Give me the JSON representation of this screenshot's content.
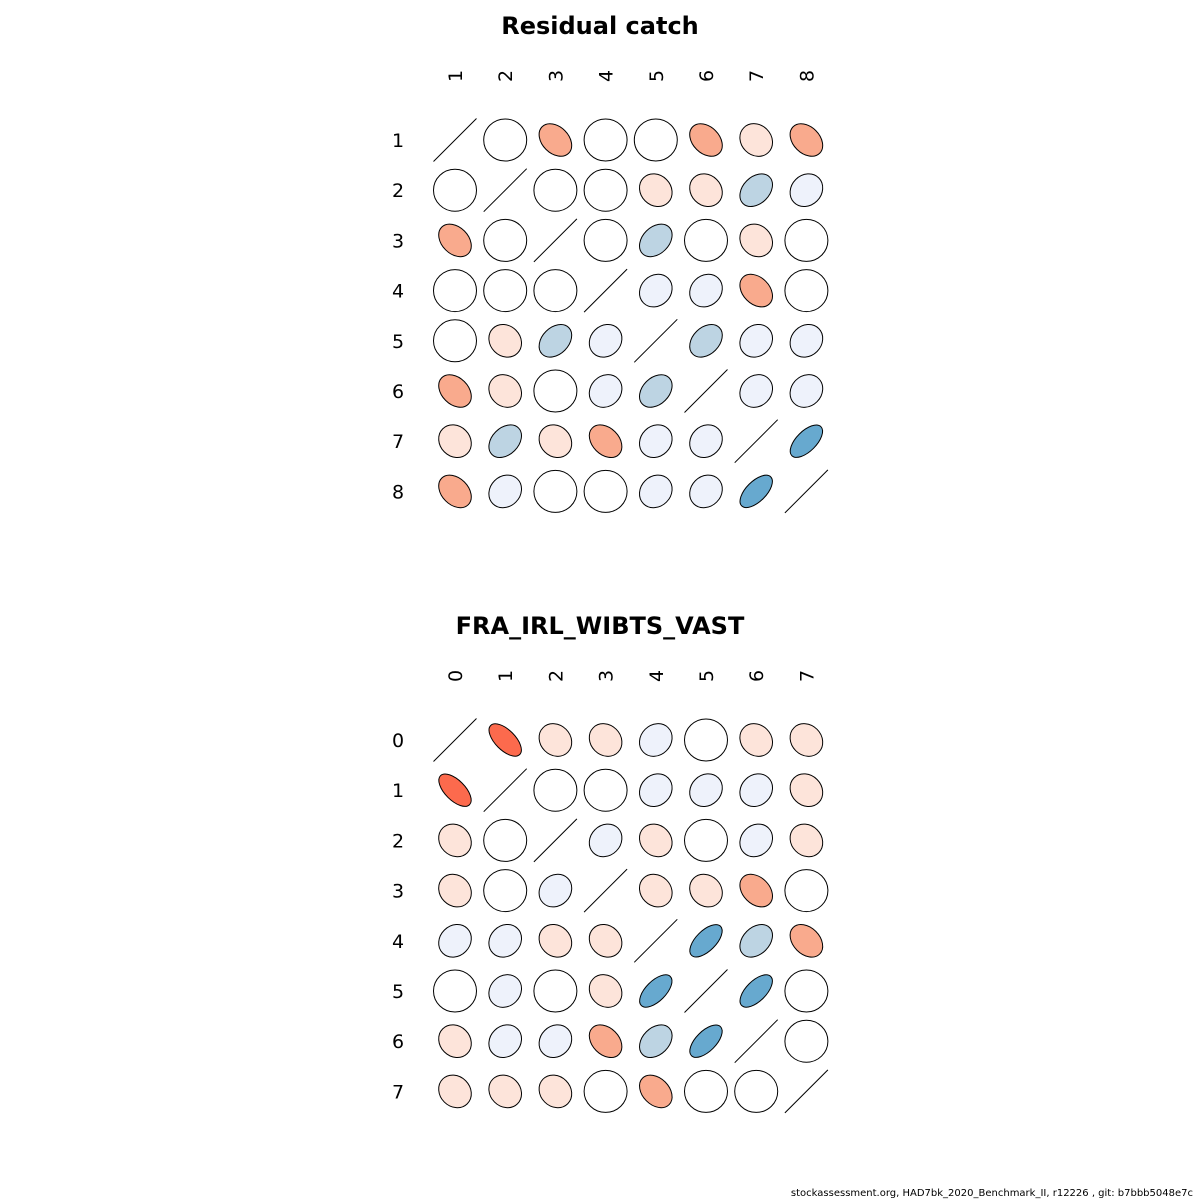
{
  "footer": "stockassessment.org, HAD7bk_2020_Benchmark_II, r12226 , git: b7bbb5048e7c",
  "legend_colors": {
    "-0.6": "#67a9cf",
    "-0.3": "#bdd4e3",
    "-0.1": "#eef2fb",
    "0": "#ffffff",
    "0.1": "#fde4da",
    "0.3": "#f9aa8d",
    "0.6": "#fc6a4d"
  },
  "chart_data": [
    {
      "type": "heatmap",
      "title": "Residual catch",
      "labels": [
        "1",
        "2",
        "3",
        "4",
        "5",
        "6",
        "7",
        "8"
      ],
      "values": [
        [
          1,
          0,
          0.3,
          0,
          0,
          0.3,
          0.1,
          0.3
        ],
        [
          0,
          1,
          0,
          0,
          0.1,
          0.1,
          -0.3,
          -0.1
        ],
        [
          0.3,
          0,
          1,
          0,
          -0.3,
          0,
          0.1,
          0
        ],
        [
          0,
          0,
          0,
          1,
          -0.1,
          -0.1,
          0.3,
          0
        ],
        [
          0,
          0.1,
          -0.3,
          -0.1,
          1,
          -0.3,
          -0.1,
          -0.1
        ],
        [
          0.3,
          0.1,
          0,
          -0.1,
          -0.3,
          1,
          -0.1,
          -0.1
        ],
        [
          0.1,
          -0.3,
          0.1,
          0.3,
          -0.1,
          -0.1,
          1,
          -0.6
        ],
        [
          0.3,
          -0.1,
          0,
          0,
          -0.1,
          -0.1,
          -0.6,
          1
        ]
      ]
    },
    {
      "type": "heatmap",
      "title": "FRA_IRL_WIBTS_VAST",
      "labels": [
        "0",
        "1",
        "2",
        "3",
        "4",
        "5",
        "6",
        "7"
      ],
      "values": [
        [
          1,
          0.6,
          0.1,
          0.1,
          -0.1,
          0,
          0.1,
          0.1
        ],
        [
          0.6,
          1,
          0,
          0,
          -0.1,
          -0.1,
          -0.1,
          0.1
        ],
        [
          0.1,
          0,
          1,
          -0.1,
          0.1,
          0,
          -0.1,
          0.1
        ],
        [
          0.1,
          0,
          -0.1,
          1,
          0.1,
          0.1,
          0.3,
          0
        ],
        [
          -0.1,
          -0.1,
          0.1,
          0.1,
          1,
          -0.6,
          -0.3,
          0.3
        ],
        [
          0,
          -0.1,
          0,
          0.1,
          -0.6,
          1,
          -0.6,
          0
        ],
        [
          0.1,
          -0.1,
          -0.1,
          0.3,
          -0.3,
          -0.6,
          1,
          0
        ],
        [
          0.1,
          0.1,
          0.1,
          0,
          0.3,
          0,
          0,
          1
        ]
      ]
    }
  ]
}
